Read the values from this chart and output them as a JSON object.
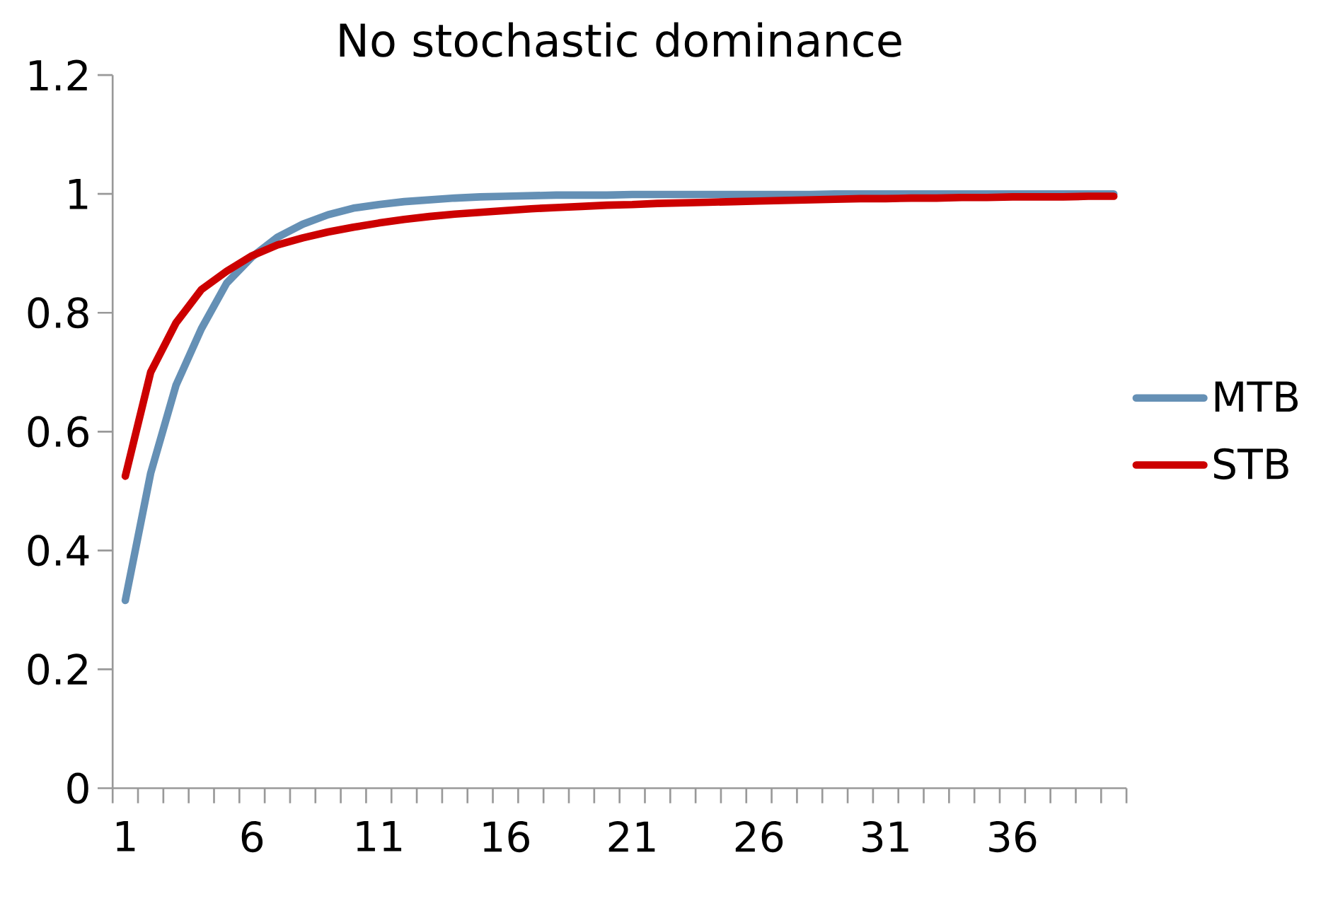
{
  "chart_data": {
    "type": "line",
    "title": "No stochastic dominance",
    "categories": [
      "1",
      null,
      null,
      null,
      null,
      "6",
      null,
      null,
      null,
      null,
      "11",
      null,
      null,
      null,
      null,
      "16",
      null,
      null,
      null,
      null,
      "21",
      null,
      null,
      null,
      null,
      "26",
      null,
      null,
      null,
      null,
      "31",
      null,
      null,
      null,
      null,
      "36",
      null,
      null,
      null,
      null
    ],
    "series": [
      {
        "name": "MTB",
        "color": "#6590b5",
        "values": [
          0.316,
          0.53,
          0.678,
          0.773,
          0.85,
          0.894,
          0.927,
          0.949,
          0.965,
          0.976,
          0.982,
          0.987,
          0.99,
          0.993,
          0.995,
          0.996,
          0.997,
          0.998,
          0.998,
          0.998,
          0.999,
          0.999,
          0.999,
          0.999,
          0.999,
          0.999,
          0.999,
          0.999,
          1.0,
          1.0,
          1.0,
          1.0,
          1.0,
          1.0,
          1.0,
          1.0,
          1.0,
          1.0,
          1.0,
          1.0
        ]
      },
      {
        "name": "STB",
        "color": "#cc0000",
        "values": [
          0.525,
          0.7,
          0.783,
          0.839,
          0.87,
          0.896,
          0.914,
          0.926,
          0.936,
          0.944,
          0.951,
          0.957,
          0.962,
          0.966,
          0.969,
          0.972,
          0.975,
          0.977,
          0.979,
          0.981,
          0.982,
          0.984,
          0.985,
          0.986,
          0.987,
          0.988,
          0.989,
          0.99,
          0.991,
          0.992,
          0.992,
          0.993,
          0.993,
          0.994,
          0.994,
          0.995,
          0.995,
          0.995,
          0.996,
          0.996
        ]
      }
    ],
    "ylim": [
      0,
      1.2
    ],
    "yticks": [
      0,
      0.2,
      0.4,
      0.6,
      0.8,
      1,
      1.2
    ],
    "legend": "right",
    "grid": false,
    "marker": "none",
    "line_style": "solid"
  }
}
